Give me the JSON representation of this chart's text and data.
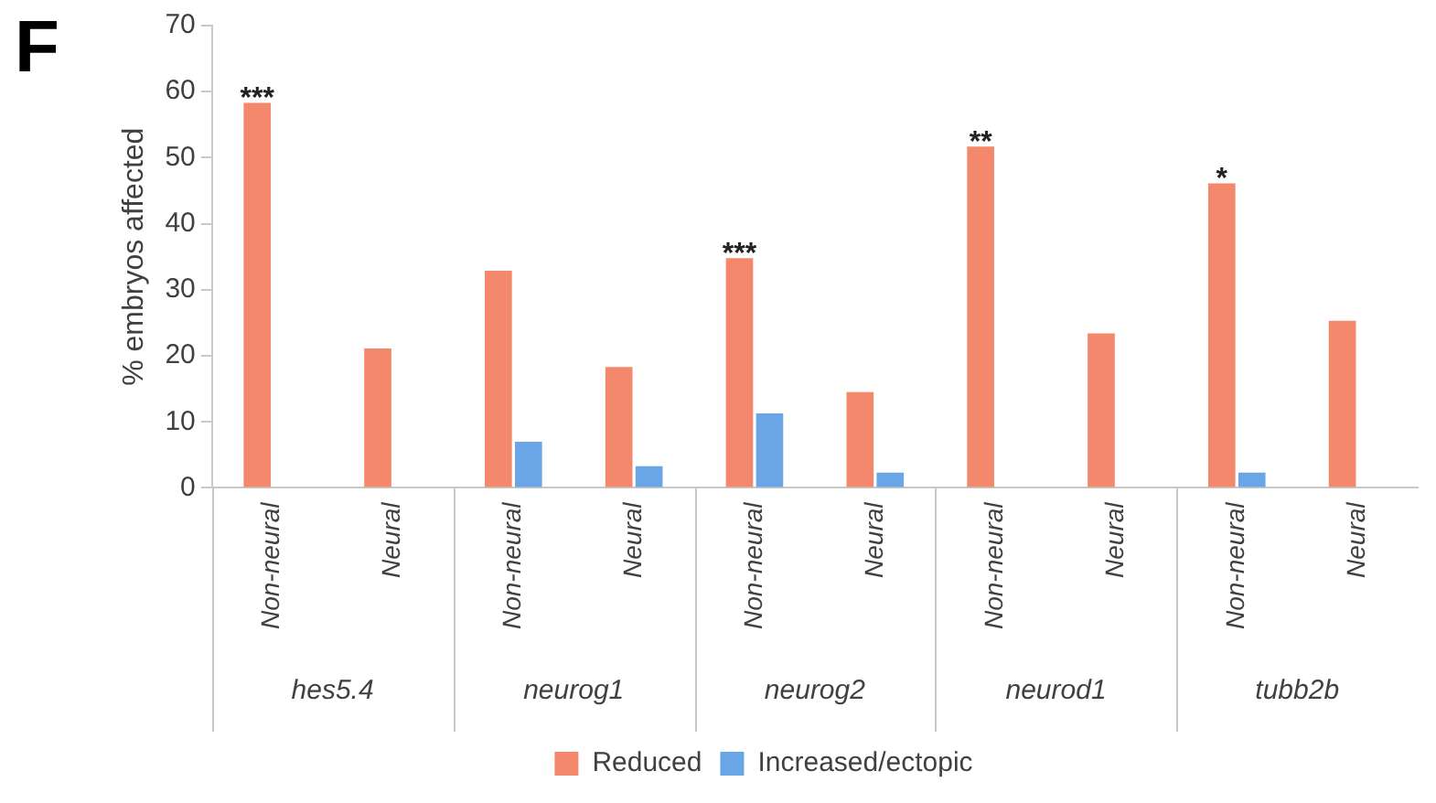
{
  "chart_data": {
    "type": "bar",
    "title": "F",
    "ylabel": "% embryos affected",
    "categories": [
      "Non-neural",
      "Neural",
      "Non-neural",
      "Neural",
      "Non-neural",
      "Neural",
      "Non-neural",
      "Neural",
      "Non-neural",
      "Neural"
    ],
    "series": [
      {
        "name": "Reduced",
        "color": "#f4886c",
        "values": [
          58.3,
          21.1,
          32.9,
          18.3,
          34.8,
          14.5,
          51.7,
          23.4,
          46.1,
          25.3
        ],
        "value_labels": [
          "***",
          null,
          null,
          null,
          "***",
          null,
          "**",
          null,
          "*",
          null
        ]
      },
      {
        "name": "Increased/ectopic",
        "color": "#6aa5e6",
        "values": [
          null,
          null,
          7.0,
          3.3,
          11.3,
          2.3,
          null,
          null,
          2.3,
          null
        ]
      }
    ],
    "ylim": [
      0,
      70
    ],
    "yticks": [
      0,
      10,
      20,
      30,
      40,
      50,
      60,
      70
    ],
    "grid": false,
    "legend": "bottom",
    "annotations": [
      "hes5.4",
      "neurog1",
      "neurog2",
      "neurod1",
      "tubb2b"
    ]
  }
}
